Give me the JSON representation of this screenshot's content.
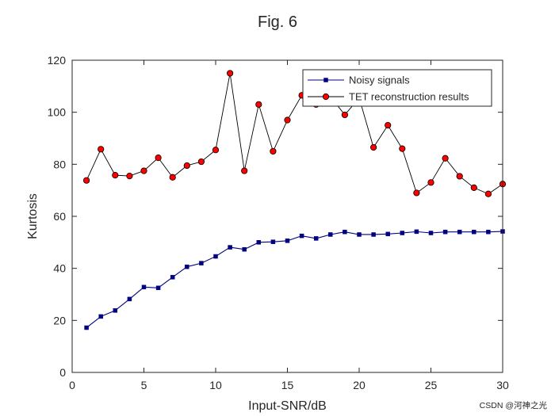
{
  "watermark": "CSDN @河神之光",
  "chart_data": {
    "type": "line",
    "title": "Fig. 6",
    "xlabel": "Input-SNR/dB",
    "ylabel": "Kurtosis",
    "xlim": [
      0,
      30
    ],
    "ylim": [
      0,
      120
    ],
    "xticks": [
      0,
      5,
      10,
      15,
      20,
      25,
      30
    ],
    "yticks": [
      0,
      20,
      40,
      60,
      80,
      100,
      120
    ],
    "grid": false,
    "legend_position": "top-right",
    "x": [
      1,
      2,
      3,
      4,
      5,
      6,
      7,
      8,
      9,
      10,
      11,
      12,
      13,
      14,
      15,
      16,
      17,
      18,
      19,
      20,
      21,
      22,
      23,
      24,
      25,
      26,
      27,
      28,
      29,
      30
    ],
    "series": [
      {
        "name": "Noisy signals",
        "color": "#000080",
        "marker": "square",
        "values": [
          17.2,
          21.5,
          23.8,
          28.2,
          32.8,
          32.5,
          36.6,
          40.6,
          42.0,
          44.6,
          48.1,
          47.3,
          50.0,
          50.2,
          50.6,
          52.5,
          51.5,
          53.0,
          54.0,
          53.0,
          53.0,
          53.2,
          53.6,
          54.1,
          53.6,
          54.0,
          54.0,
          54.0,
          54.0,
          54.2
        ]
      },
      {
        "name": "TET reconstruction results",
        "color": "#000000",
        "marker": "circle",
        "marker_fill": "#ff0000",
        "values": [
          73.8,
          85.8,
          75.8,
          75.5,
          77.5,
          82.5,
          75.0,
          79.5,
          81.0,
          85.5,
          115.0,
          77.5,
          103.0,
          85.0,
          97.0,
          106.5,
          103.0,
          106.0,
          99.0,
          105.5,
          86.5,
          95.0,
          86.0,
          69.0,
          73.0,
          82.3,
          75.4,
          71.0,
          68.6,
          72.4
        ]
      }
    ]
  }
}
